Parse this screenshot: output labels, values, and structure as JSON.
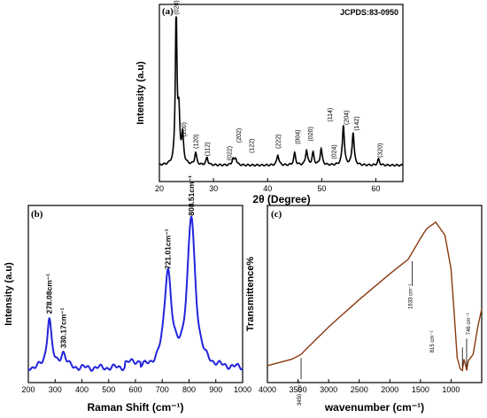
{
  "chart_data": [
    {
      "type": "line",
      "panel_label": "(a)",
      "reference": "JCPDS:83-0950",
      "xlabel": "2θ (Degree)",
      "ylabel": "Intensity (a.u)",
      "xlim": [
        20,
        65
      ],
      "x_ticks": [
        20,
        30,
        40,
        50,
        60
      ],
      "color": "#000000",
      "peaks": [
        {
          "x": 23.1,
          "y": 1.0
        },
        {
          "x": 23.6,
          "y": 0.32
        },
        {
          "x": 24.3,
          "y": 0.18
        },
        {
          "x": 26.7,
          "y": 0.08
        },
        {
          "x": 28.8,
          "y": 0.05
        },
        {
          "x": 33.6,
          "y": 0.04
        },
        {
          "x": 34.1,
          "y": 0.045
        },
        {
          "x": 41.9,
          "y": 0.07
        },
        {
          "x": 45.0,
          "y": 0.08
        },
        {
          "x": 47.2,
          "y": 0.1
        },
        {
          "x": 48.4,
          "y": 0.08
        },
        {
          "x": 49.9,
          "y": 0.11
        },
        {
          "x": 54.0,
          "y": 0.27
        },
        {
          "x": 55.8,
          "y": 0.22
        },
        {
          "x": 60.5,
          "y": 0.04
        }
      ],
      "annotations": [
        {
          "text": "(020)",
          "x": 23.2,
          "y": 1.02
        },
        {
          "text": "(200)",
          "x": 24.6,
          "y": 0.2
        },
        {
          "text": "(120)",
          "x": 26.8,
          "y": 0.12
        },
        {
          "text": "(112)",
          "x": 28.9,
          "y": 0.07
        },
        {
          "text": "(022)",
          "x": 33.0,
          "y": 0.04
        },
        {
          "text": "(202)",
          "x": 34.7,
          "y": 0.16
        },
        {
          "text": "(122)",
          "x": 37.1,
          "y": 0.09
        },
        {
          "text": "(222)",
          "x": 42.0,
          "y": 0.12
        },
        {
          "text": "(004)",
          "x": 45.6,
          "y": 0.15
        },
        {
          "text": "(020)",
          "x": 48.0,
          "y": 0.17
        },
        {
          "text": "(024)",
          "x": 52.3,
          "y": 0.05
        },
        {
          "text": "(114)",
          "x": 51.6,
          "y": 0.3
        },
        {
          "text": "(204)",
          "x": 54.6,
          "y": 0.28
        },
        {
          "text": "(142)",
          "x": 56.5,
          "y": 0.24
        },
        {
          "text": "(320)",
          "x": 60.8,
          "y": 0.06
        }
      ]
    },
    {
      "type": "line",
      "panel_label": "(b)",
      "xlabel": "Raman Shift (cm⁻¹)",
      "ylabel": "Intensity (a.u)",
      "xlim": [
        200,
        1000
      ],
      "x_ticks": [
        200,
        300,
        400,
        500,
        600,
        700,
        800,
        900,
        1000
      ],
      "color": "#2323dc",
      "peaks": [
        {
          "x": 278.08,
          "y": 0.34,
          "w": 10
        },
        {
          "x": 330.17,
          "y": 0.1,
          "w": 12
        },
        {
          "x": 721.01,
          "y": 0.64,
          "w": 16
        },
        {
          "x": 808.51,
          "y": 1.0,
          "w": 18
        }
      ],
      "annotations": [
        {
          "text": "278.08cm⁻¹",
          "x": 278.08,
          "y": 0.36
        },
        {
          "text": "330.17cm⁻¹",
          "x": 330.17,
          "y": 0.13
        },
        {
          "text": "721.01cm⁻¹",
          "x": 721.01,
          "y": 0.66
        },
        {
          "text": "808.51cm⁻¹",
          "x": 808.51,
          "y": 1.02
        }
      ]
    },
    {
      "type": "line",
      "panel_label": "(c)",
      "xlabel": "wavenumber (cm⁻¹)",
      "ylabel": "Transmittence%",
      "xlim": [
        4000,
        500
      ],
      "x_ticks": [
        4000,
        3500,
        3000,
        2500,
        2000,
        1500,
        1000
      ],
      "color": "#8a3a0f",
      "curve": [
        [
          4000,
          0.05
        ],
        [
          3600,
          0.09
        ],
        [
          3450,
          0.12
        ],
        [
          3400,
          0.14
        ],
        [
          3000,
          0.29
        ],
        [
          2500,
          0.46
        ],
        [
          2000,
          0.62
        ],
        [
          1700,
          0.71
        ],
        [
          1500,
          0.84
        ],
        [
          1400,
          0.9
        ],
        [
          1250,
          0.94
        ],
        [
          1100,
          0.86
        ],
        [
          1000,
          0.65
        ],
        [
          950,
          0.38
        ],
        [
          900,
          0.1
        ],
        [
          850,
          0.03
        ],
        [
          815,
          0.02
        ],
        [
          790,
          0.09
        ],
        [
          760,
          0.05
        ],
        [
          746,
          0.02
        ],
        [
          720,
          0.08
        ],
        [
          640,
          0.12
        ],
        [
          560,
          0.3
        ],
        [
          500,
          0.4
        ]
      ],
      "annotations": [
        {
          "text": "3450 cm⁻¹",
          "x": 3450,
          "y": 0.12
        },
        {
          "text": "1633 cm⁻¹",
          "x": 1633,
          "y": 0.72
        },
        {
          "text": "815 cm⁻¹",
          "x": 815,
          "y": 0.02
        },
        {
          "text": "746 cm⁻¹",
          "x": 746,
          "y": 0.02
        }
      ]
    }
  ]
}
